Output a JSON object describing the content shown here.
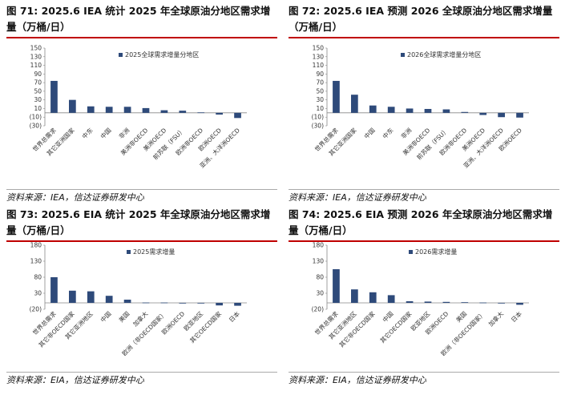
{
  "panels": [
    {
      "title": "图 71:  2025.6 IEA 统计 2025 年全球原油分地区需求增量（万桶/日）",
      "source": "资料来源：IEA，信达证券研发中心",
      "chart_data": {
        "type": "bar",
        "title": "",
        "xlabel": "",
        "ylabel": "",
        "ylim": [
          -30,
          150
        ],
        "yticks": [
          "150",
          "130",
          "110",
          "90",
          "70",
          "50",
          "30",
          "10",
          "(10)",
          "(30)"
        ],
        "ytick_values": [
          150,
          130,
          110,
          90,
          70,
          50,
          30,
          10,
          -10,
          -30
        ],
        "legend": "2025全球需求增量分地区",
        "legend_position": "top-right",
        "grid": false,
        "categories": [
          "世界总需求",
          "其它亚洲国家",
          "中东",
          "中国",
          "非洲",
          "美洲非OECD",
          "美洲OECD",
          "前苏联（FSU）",
          "欧洲非OECD",
          "欧洲OECD",
          "亚洲、大洋洲OECD"
        ],
        "values": [
          74,
          30,
          15,
          14,
          14,
          11,
          6,
          5,
          1,
          -4,
          -12
        ],
        "color": "#2e4a7a"
      }
    },
    {
      "title": "图 72:  2025.6 IEA 预测 2026 全球原油分地区需求增量（万桶/日）",
      "source": "资料来源：IEA，信达证券研发中心",
      "chart_data": {
        "type": "bar",
        "title": "",
        "xlabel": "",
        "ylabel": "",
        "ylim": [
          -30,
          150
        ],
        "yticks": [
          "150",
          "130",
          "110",
          "90",
          "70",
          "50",
          "30",
          "10",
          "(10)",
          "(30)"
        ],
        "ytick_values": [
          150,
          130,
          110,
          90,
          70,
          50,
          30,
          10,
          -10,
          -30
        ],
        "legend": "2026全球需求增量分地区",
        "legend_position": "top-right",
        "grid": false,
        "categories": [
          "世界总需求",
          "其它亚洲国家",
          "中国",
          "中东",
          "非洲",
          "美洲非OECD",
          "前苏联（FSU）",
          "欧洲非OECD",
          "美洲OECD",
          "亚洲、大洋洲OECD",
          "欧洲OECD"
        ],
        "values": [
          74,
          42,
          17,
          14,
          10,
          9,
          8,
          2,
          -5,
          -10,
          -11
        ],
        "color": "#2e4a7a"
      }
    },
    {
      "title": "图 73:  2025.6 EIA 统计 2025 年全球原油分地区需求增量（万桶/日）",
      "source": "资料来源：EIA，信达证券研发中心",
      "chart_data": {
        "type": "bar",
        "title": "",
        "xlabel": "",
        "ylabel": "",
        "ylim": [
          -20,
          180
        ],
        "yticks": [
          "180",
          "130",
          "80",
          "30",
          "(20)"
        ],
        "ytick_values": [
          180,
          130,
          80,
          30,
          -20
        ],
        "legend": "2025需求增量",
        "legend_position": "top-right",
        "grid": false,
        "categories": [
          "世界总需求",
          "其它非OECD国家",
          "其它亚洲地区",
          "中国",
          "美国",
          "加拿大",
          "欧洲（非OECD国家）",
          "欧洲OECD",
          "欧亚地区",
          "其它OECD国家",
          "日本"
        ],
        "values": [
          80,
          38,
          36,
          22,
          10,
          1,
          1,
          0,
          -2,
          -8,
          -9
        ],
        "color": "#2e4a7a"
      }
    },
    {
      "title": "图 74:  2025.6 EIA 预测 2026 年全球原油分地区需求增量（万桶/日）",
      "source": "资料来源：EIA，信达证券研发中心",
      "chart_data": {
        "type": "bar",
        "title": "",
        "xlabel": "",
        "ylabel": "",
        "ylim": [
          -20,
          180
        ],
        "yticks": [
          "180",
          "130",
          "80",
          "30",
          "(20)"
        ],
        "ytick_values": [
          180,
          130,
          80,
          30,
          -20
        ],
        "legend": "2026需求增量",
        "legend_position": "top-right",
        "grid": false,
        "categories": [
          "世界总需求",
          "其它亚洲地区",
          "其它非OECD国家",
          "中国",
          "其它OECD国家",
          "欧亚地区",
          "欧洲OECD",
          "美国",
          "欧洲（非OECD国家）",
          "加拿大",
          "日本"
        ],
        "values": [
          105,
          42,
          33,
          24,
          5,
          4,
          3,
          2,
          1,
          0,
          -6
        ],
        "color": "#2e4a7a"
      }
    }
  ]
}
